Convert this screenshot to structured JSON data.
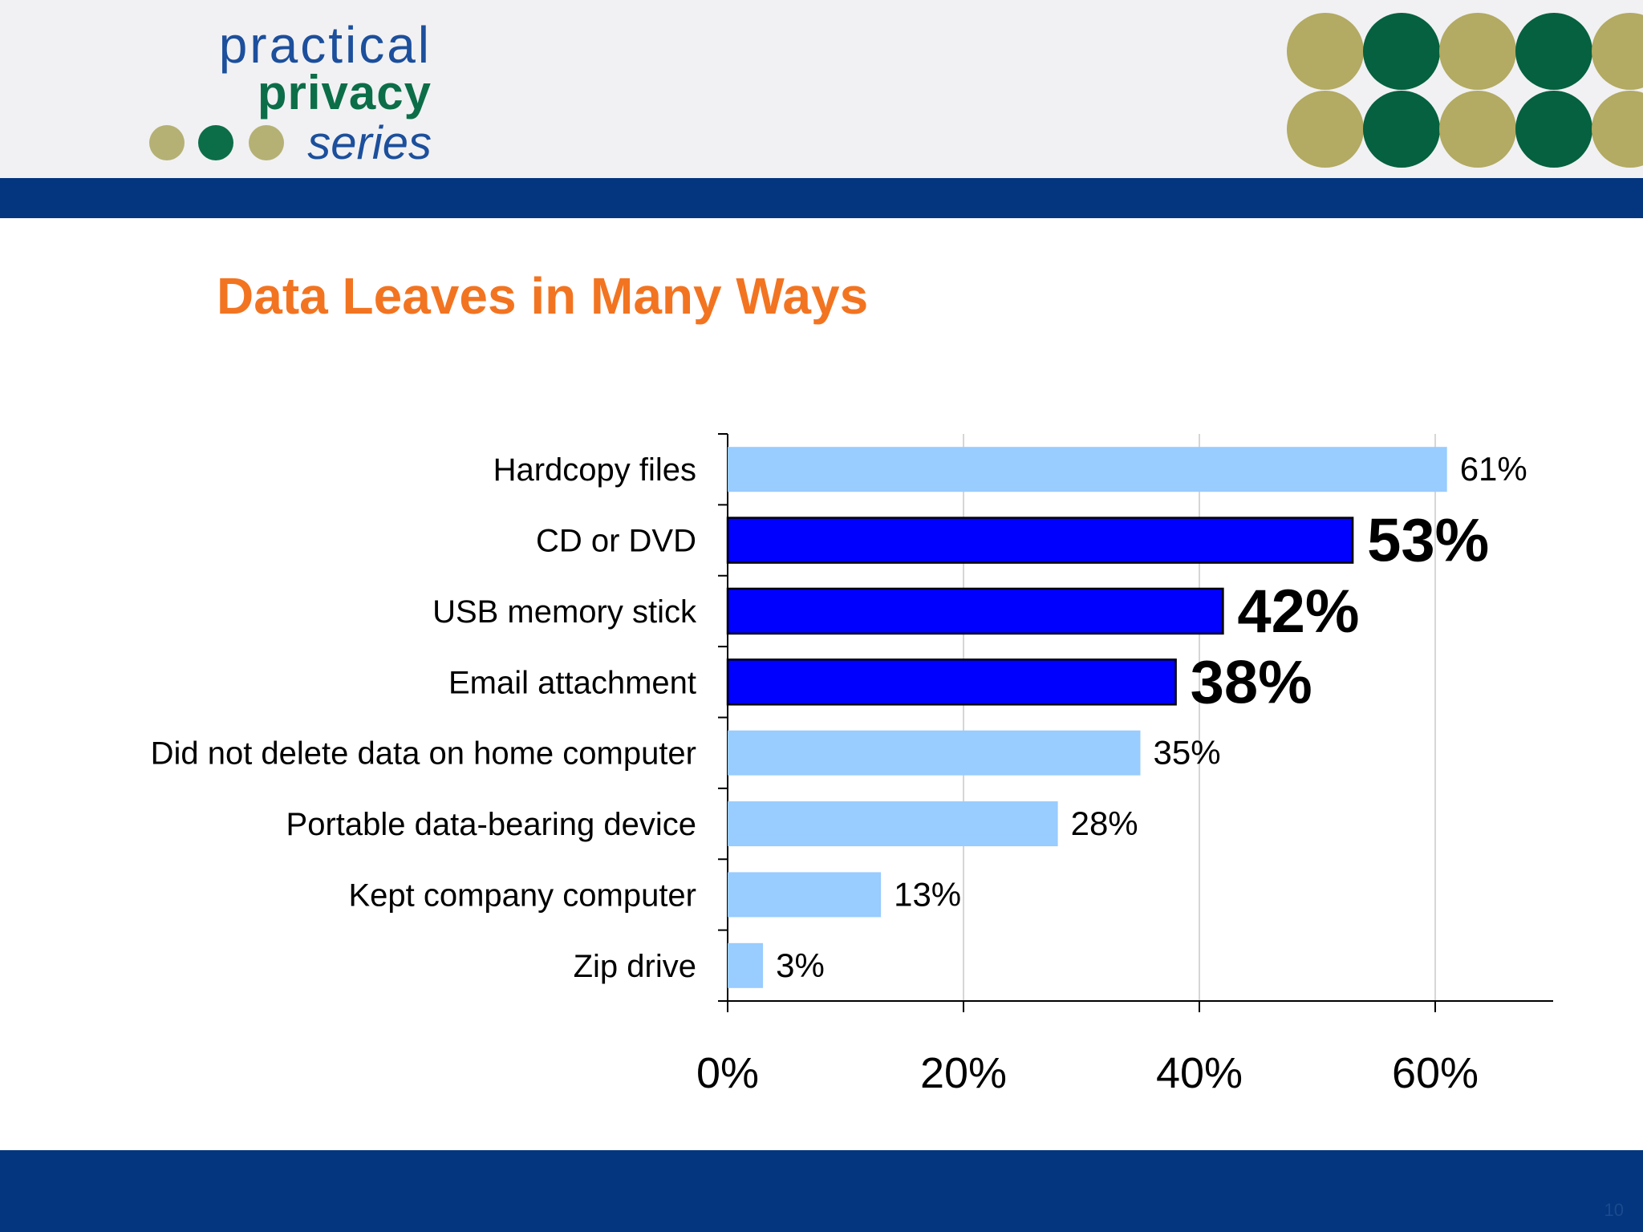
{
  "logo": {
    "line1": "practical",
    "line2": "privacy",
    "line3": "series",
    "dot_colors": [
      "#b5b175",
      "#0c6e48",
      "#b5b175"
    ]
  },
  "header_circles": {
    "colors": [
      "#b3aa63",
      "#05613f",
      "#b3aa63",
      "#05613f",
      "#b3aa63"
    ]
  },
  "slide": {
    "title": "Data Leaves in Many Ways",
    "number": "10"
  },
  "chart_data": {
    "type": "bar",
    "orientation": "horizontal",
    "title": "",
    "xlabel": "",
    "ylabel": "",
    "categories": [
      "Hardcopy files",
      "CD or DVD",
      "USB memory stick",
      "Email attachment",
      "Did not delete data on home computer",
      "Portable data-bearing device",
      "Kept company computer",
      "Zip drive"
    ],
    "values": [
      61,
      53,
      42,
      38,
      35,
      28,
      13,
      3
    ],
    "value_labels": [
      "61%",
      "53%",
      "42%",
      "38%",
      "35%",
      "28%",
      "13%",
      "3%"
    ],
    "highlighted": [
      false,
      true,
      true,
      true,
      false,
      false,
      false,
      false
    ],
    "xlim": [
      0,
      70
    ],
    "xticks": [
      0,
      20,
      40,
      60
    ],
    "xtick_labels": [
      "0%",
      "20%",
      "40%",
      "60%"
    ],
    "grid": "vertical",
    "legend": "none",
    "colors": {
      "normal": "#99ccff",
      "highlight": "#0000ff"
    }
  }
}
